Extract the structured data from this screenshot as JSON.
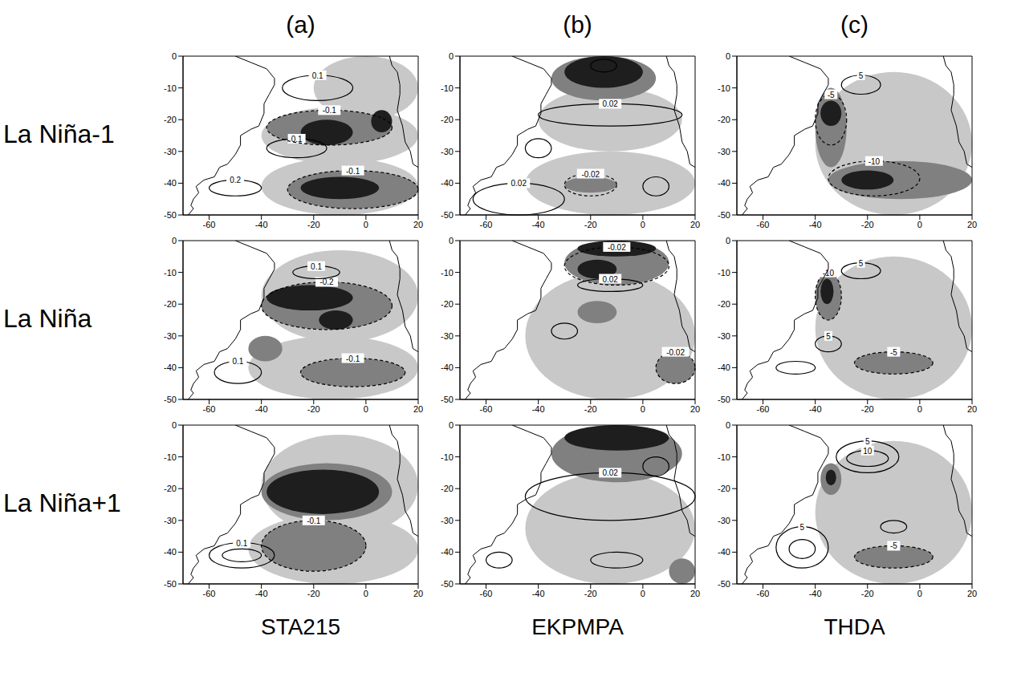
{
  "column_headers": [
    "(a)",
    "(b)",
    "(c)"
  ],
  "column_footers": [
    "STA215",
    "EKPMPA",
    "THDA"
  ],
  "row_labels": [
    "La Niña-1",
    "La Niña",
    "La Niña+1"
  ],
  "xlim": [
    -70,
    20
  ],
  "xticks": [
    -60,
    -40,
    -20,
    0,
    20
  ],
  "ylim": [
    -50,
    0
  ],
  "yticks": [
    0,
    -10,
    -20,
    -30,
    -40,
    -50
  ],
  "shade_colors": [
    "#ffffff",
    "#c8c8c8",
    "#808080",
    "#1e1e1e"
  ],
  "coastlines": [
    [
      [
        -50,
        0
      ],
      [
        -44,
        -2
      ],
      [
        -38,
        -4
      ],
      [
        -35,
        -7
      ],
      [
        -35,
        -9
      ],
      [
        -37,
        -12
      ],
      [
        -39,
        -15
      ],
      [
        -39,
        -18
      ],
      [
        -41,
        -22
      ],
      [
        -44,
        -23
      ],
      [
        -48,
        -25
      ],
      [
        -48,
        -28
      ],
      [
        -50,
        -31
      ],
      [
        -53,
        -34
      ],
      [
        -56,
        -35
      ],
      [
        -58,
        -38
      ],
      [
        -62,
        -39
      ],
      [
        -65,
        -41
      ],
      [
        -64,
        -43
      ],
      [
        -66,
        -45
      ],
      [
        -67,
        -47
      ],
      [
        -66,
        -48
      ],
      [
        -68,
        -50
      ]
    ],
    [
      [
        9,
        0
      ],
      [
        10,
        -3
      ],
      [
        12,
        -5
      ],
      [
        13,
        -9
      ],
      [
        13,
        -12
      ],
      [
        12,
        -17
      ],
      [
        14,
        -22
      ],
      [
        15,
        -27
      ],
      [
        17,
        -30
      ],
      [
        18,
        -34
      ],
      [
        20,
        -35
      ]
    ]
  ],
  "chart_data": [
    {
      "type": "contour",
      "row": 0,
      "column": 0,
      "shading": [
        {
          "x": [
            -40,
            20
          ],
          "y": [
            -16,
            -34
          ],
          "level": 1
        },
        {
          "x": [
            -40,
            20
          ],
          "y": [
            -32,
            -50
          ],
          "level": 1
        },
        {
          "x": [
            -20,
            20
          ],
          "y": [
            0,
            -20
          ],
          "level": 1
        },
        {
          "x": [
            -38,
            10
          ],
          "y": [
            -17,
            -28
          ],
          "level": 2
        },
        {
          "x": [
            -25,
            -5
          ],
          "y": [
            -20,
            -28
          ],
          "level": 3
        },
        {
          "x": [
            2,
            10
          ],
          "y": [
            -17,
            -24
          ],
          "level": 3
        },
        {
          "x": [
            -30,
            20
          ],
          "y": [
            -36,
            -48
          ],
          "level": 2
        },
        {
          "x": [
            -25,
            5
          ],
          "y": [
            -38,
            -45
          ],
          "level": 3
        }
      ],
      "contours": [
        {
          "x": [
            -32,
            -5
          ],
          "y": [
            -6,
            -14
          ],
          "line_style": "solid",
          "label": "0.1"
        },
        {
          "x": [
            -38,
            -15
          ],
          "y": [
            -26,
            -32
          ],
          "line_style": "solid",
          "label": "0.1"
        },
        {
          "x": [
            -60,
            -40
          ],
          "y": [
            -39,
            -44
          ],
          "line_style": "solid",
          "label": "0.2"
        },
        {
          "x": [
            -38,
            10
          ],
          "y": [
            -17,
            -28
          ],
          "line_style": "dashed",
          "label": "-0.1"
        },
        {
          "x": [
            -30,
            20
          ],
          "y": [
            -36,
            -48
          ],
          "line_style": "dashed",
          "label": "-0.1"
        }
      ]
    },
    {
      "type": "contour",
      "row": 0,
      "column": 1,
      "shading": [
        {
          "x": [
            -40,
            15
          ],
          "y": [
            -10,
            -30
          ],
          "level": 1
        },
        {
          "x": [
            -45,
            20
          ],
          "y": [
            -30,
            -50
          ],
          "level": 1
        },
        {
          "x": [
            -35,
            5
          ],
          "y": [
            0,
            -14
          ],
          "level": 2
        },
        {
          "x": [
            -30,
            0
          ],
          "y": [
            0,
            -10
          ],
          "level": 3
        },
        {
          "x": [
            -30,
            -10
          ],
          "y": [
            -38,
            -43
          ],
          "level": 2
        }
      ],
      "contours": [
        {
          "x": [
            -40,
            15
          ],
          "y": [
            -15,
            -22
          ],
          "line_style": "solid",
          "label": "0.02"
        },
        {
          "x": [
            -45,
            -35
          ],
          "y": [
            -26,
            -32
          ],
          "line_style": "solid"
        },
        {
          "x": [
            -65,
            -30
          ],
          "y": [
            -40,
            -50
          ],
          "line_style": "solid",
          "label": "0.02"
        },
        {
          "x": [
            0,
            10
          ],
          "y": [
            -38,
            -44
          ],
          "line_style": "solid"
        },
        {
          "x": [
            -30,
            -10
          ],
          "y": [
            -37,
            -44
          ],
          "line_style": "dashed",
          "label": "-0.02"
        },
        {
          "x": [
            -20,
            -10
          ],
          "y": [
            -1,
            -5
          ],
          "line_style": "solid"
        }
      ]
    },
    {
      "type": "contour",
      "row": 0,
      "column": 2,
      "shading": [
        {
          "x": [
            -40,
            20
          ],
          "y": [
            -5,
            -50
          ],
          "level": 1
        },
        {
          "x": [
            -40,
            -28
          ],
          "y": [
            -10,
            -35
          ],
          "level": 2
        },
        {
          "x": [
            -38,
            -30
          ],
          "y": [
            -14,
            -22
          ],
          "level": 3
        },
        {
          "x": [
            -35,
            20
          ],
          "y": [
            -33,
            -45
          ],
          "level": 2
        },
        {
          "x": [
            -30,
            -10
          ],
          "y": [
            -36,
            -42
          ],
          "level": 3
        }
      ],
      "contours": [
        {
          "x": [
            -30,
            -15
          ],
          "y": [
            -6,
            -12
          ],
          "line_style": "solid",
          "label": "5"
        },
        {
          "x": [
            -40,
            -28
          ],
          "y": [
            -12,
            -28
          ],
          "line_style": "dashed",
          "label": "-5"
        },
        {
          "x": [
            -35,
            0
          ],
          "y": [
            -33,
            -44
          ],
          "line_style": "dashed",
          "label": "-10"
        }
      ]
    },
    {
      "type": "contour",
      "row": 1,
      "column": 0,
      "shading": [
        {
          "x": [
            -40,
            20
          ],
          "y": [
            -3,
            -32
          ],
          "level": 1
        },
        {
          "x": [
            -45,
            20
          ],
          "y": [
            -30,
            -50
          ],
          "level": 1
        },
        {
          "x": [
            -40,
            10
          ],
          "y": [
            -13,
            -28
          ],
          "level": 2
        },
        {
          "x": [
            -38,
            -5
          ],
          "y": [
            -14,
            -22
          ],
          "level": 3
        },
        {
          "x": [
            -18,
            -5
          ],
          "y": [
            -22,
            -28
          ],
          "level": 3
        },
        {
          "x": [
            -45,
            -32
          ],
          "y": [
            -30,
            -38
          ],
          "level": 2
        },
        {
          "x": [
            -25,
            15
          ],
          "y": [
            -37,
            -46
          ],
          "level": 2
        }
      ],
      "contours": [
        {
          "x": [
            -40,
            10
          ],
          "y": [
            -13,
            -28
          ],
          "line_style": "dashed",
          "label": "-0.2"
        },
        {
          "x": [
            -28,
            -10
          ],
          "y": [
            -8,
            -12
          ],
          "line_style": "solid",
          "label": "0.1"
        },
        {
          "x": [
            -58,
            -40
          ],
          "y": [
            -38,
            -45
          ],
          "line_style": "solid",
          "label": "0.1"
        },
        {
          "x": [
            -25,
            15
          ],
          "y": [
            -37,
            -46
          ],
          "line_style": "dashed",
          "label": "-0.1"
        }
      ]
    },
    {
      "type": "contour",
      "row": 1,
      "column": 1,
      "shading": [
        {
          "x": [
            -45,
            20
          ],
          "y": [
            -10,
            -50
          ],
          "level": 1
        },
        {
          "x": [
            -30,
            10
          ],
          "y": [
            0,
            -14
          ],
          "level": 2
        },
        {
          "x": [
            -25,
            5
          ],
          "y": [
            0,
            -5
          ],
          "level": 3
        },
        {
          "x": [
            -25,
            -10
          ],
          "y": [
            -6,
            -12
          ],
          "level": 3
        },
        {
          "x": [
            -25,
            -10
          ],
          "y": [
            -19,
            -26
          ],
          "level": 2
        },
        {
          "x": [
            5,
            20
          ],
          "y": [
            -35,
            -45
          ],
          "level": 2
        }
      ],
      "contours": [
        {
          "x": [
            -25,
            0
          ],
          "y": [
            -12,
            -16
          ],
          "line_style": "solid",
          "label": "0.02"
        },
        {
          "x": [
            -35,
            -25
          ],
          "y": [
            -26,
            -31
          ],
          "line_style": "solid"
        },
        {
          "x": [
            -30,
            10
          ],
          "y": [
            -2,
            -14
          ],
          "line_style": "dashed",
          "label": "-0.02"
        },
        {
          "x": [
            5,
            20
          ],
          "y": [
            -35,
            -45
          ],
          "line_style": "dashed",
          "label": "-0.02"
        }
      ]
    },
    {
      "type": "contour",
      "row": 1,
      "column": 2,
      "shading": [
        {
          "x": [
            -40,
            20
          ],
          "y": [
            -5,
            -50
          ],
          "level": 1
        },
        {
          "x": [
            -40,
            -30
          ],
          "y": [
            -10,
            -25
          ],
          "level": 2
        },
        {
          "x": [
            -38,
            -33
          ],
          "y": [
            -12,
            -20
          ],
          "level": 3
        },
        {
          "x": [
            -25,
            5
          ],
          "y": [
            -35,
            -42
          ],
          "level": 2
        }
      ],
      "contours": [
        {
          "x": [
            -40,
            -30
          ],
          "y": [
            -10,
            -25
          ],
          "line_style": "dashed",
          "label": "-10"
        },
        {
          "x": [
            -30,
            -15
          ],
          "y": [
            -7,
            -12
          ],
          "line_style": "solid",
          "label": "5"
        },
        {
          "x": [
            -40,
            -30
          ],
          "y": [
            -30,
            -35
          ],
          "line_style": "solid",
          "label": "5"
        },
        {
          "x": [
            -25,
            5
          ],
          "y": [
            -35,
            -42
          ],
          "line_style": "dashed",
          "label": "-5"
        },
        {
          "x": [
            -55,
            -40
          ],
          "y": [
            -38,
            -42
          ],
          "line_style": "solid"
        }
      ]
    },
    {
      "type": "contour",
      "row": 2,
      "column": 0,
      "shading": [
        {
          "x": [
            -40,
            20
          ],
          "y": [
            -3,
            -35
          ],
          "level": 1
        },
        {
          "x": [
            -45,
            20
          ],
          "y": [
            -28,
            -50
          ],
          "level": 1
        },
        {
          "x": [
            -40,
            10
          ],
          "y": [
            -12,
            -30
          ],
          "level": 2
        },
        {
          "x": [
            -38,
            5
          ],
          "y": [
            -14,
            -28
          ],
          "level": 3
        },
        {
          "x": [
            -40,
            0
          ],
          "y": [
            -30,
            -46
          ],
          "level": 2
        }
      ],
      "contours": [
        {
          "x": [
            -60,
            -35
          ],
          "y": [
            -37,
            -45
          ],
          "line_style": "solid",
          "label": "0.1"
        },
        {
          "x": [
            -55,
            -40
          ],
          "y": [
            -39,
            -43
          ],
          "line_style": "solid"
        },
        {
          "x": [
            -40,
            0
          ],
          "y": [
            -30,
            -46
          ],
          "line_style": "dashed",
          "label": "-0.1"
        }
      ]
    },
    {
      "type": "contour",
      "row": 2,
      "column": 1,
      "shading": [
        {
          "x": [
            -45,
            20
          ],
          "y": [
            -15,
            -50
          ],
          "level": 1
        },
        {
          "x": [
            -35,
            15
          ],
          "y": [
            0,
            -18
          ],
          "level": 2
        },
        {
          "x": [
            -30,
            10
          ],
          "y": [
            0,
            -8
          ],
          "level": 3
        },
        {
          "x": [
            10,
            20
          ],
          "y": [
            -42,
            -50
          ],
          "level": 2
        }
      ],
      "contours": [
        {
          "x": [
            -45,
            20
          ],
          "y": [
            -15,
            -30
          ],
          "line_style": "solid",
          "label": "0.02"
        },
        {
          "x": [
            -60,
            -50
          ],
          "y": [
            -40,
            -45
          ],
          "line_style": "solid"
        },
        {
          "x": [
            -20,
            0
          ],
          "y": [
            -40,
            -45
          ],
          "line_style": "solid"
        },
        {
          "x": [
            0,
            10
          ],
          "y": [
            -10,
            -16
          ],
          "line_style": "solid"
        }
      ]
    },
    {
      "type": "contour",
      "row": 2,
      "column": 2,
      "shading": [
        {
          "x": [
            -40,
            20
          ],
          "y": [
            -5,
            -50
          ],
          "level": 1
        },
        {
          "x": [
            -38,
            -30
          ],
          "y": [
            -12,
            -22
          ],
          "level": 2
        },
        {
          "x": [
            -36,
            -32
          ],
          "y": [
            -14,
            -19
          ],
          "level": 3
        },
        {
          "x": [
            -25,
            5
          ],
          "y": [
            -38,
            -45
          ],
          "level": 2
        }
      ],
      "contours": [
        {
          "x": [
            -32,
            -8
          ],
          "y": [
            -5,
            -15
          ],
          "line_style": "solid",
          "label": "5"
        },
        {
          "x": [
            -28,
            -12
          ],
          "y": [
            -8,
            -13
          ],
          "line_style": "solid",
          "label": "10"
        },
        {
          "x": [
            -55,
            -35
          ],
          "y": [
            -32,
            -45
          ],
          "line_style": "solid",
          "label": "5"
        },
        {
          "x": [
            -50,
            -40
          ],
          "y": [
            -36,
            -42
          ],
          "line_style": "solid"
        },
        {
          "x": [
            -25,
            5
          ],
          "y": [
            -38,
            -45
          ],
          "line_style": "dashed",
          "label": "-5"
        },
        {
          "x": [
            -15,
            -5
          ],
          "y": [
            -30,
            -34
          ],
          "line_style": "solid"
        }
      ]
    }
  ]
}
